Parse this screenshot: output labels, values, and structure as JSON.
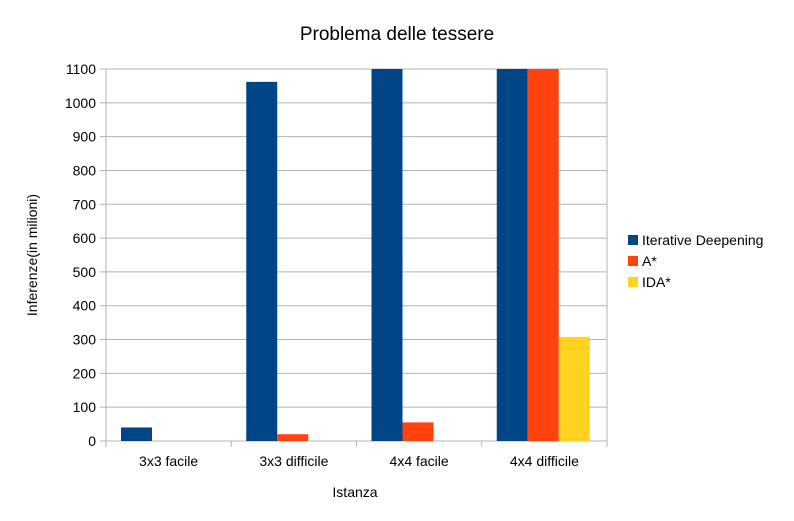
{
  "chart_data": {
    "type": "bar",
    "title": "Problema delle tessere",
    "xlabel": "Istanza",
    "ylabel": "Inferenze(in milioni)",
    "categories": [
      "3x3 facile",
      "3x3 difficile",
      "4x4 facile",
      "4x4 difficile"
    ],
    "series": [
      {
        "name": "Iterative Deepening",
        "color": "#004586",
        "values": [
          40,
          1062,
          1100,
          1100
        ]
      },
      {
        "name": "A*",
        "color": "#ff420e",
        "values": [
          0,
          20,
          55,
          1100
        ]
      },
      {
        "name": "IDA*",
        "color": "#ffd320",
        "values": [
          0,
          0,
          0,
          308
        ]
      }
    ],
    "ylim": [
      0,
      1100
    ],
    "yticks": [
      "0",
      "100",
      "200",
      "300",
      "400",
      "500",
      "600",
      "700",
      "800",
      "900",
      "1000",
      "1100"
    ],
    "grid": true,
    "legend_position": "right"
  }
}
